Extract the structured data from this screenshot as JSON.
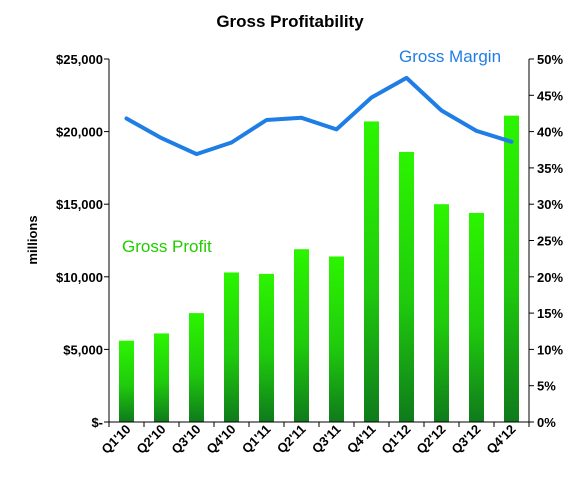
{
  "chart_data": {
    "type": "bar",
    "title": "Gross Profitability",
    "ylabel": "millions",
    "categories": [
      "Q1'10",
      "Q2'10",
      "Q3'10",
      "Q4'10",
      "Q1'11",
      "Q2'11",
      "Q3'11",
      "Q4'11",
      "Q1'12",
      "Q2'12",
      "Q3'12",
      "Q4'12"
    ],
    "series": [
      {
        "name": "Gross Profit",
        "type": "bar",
        "axis": "left",
        "color": "#22cc00",
        "values": [
          5600,
          6100,
          7500,
          10300,
          10200,
          11900,
          11400,
          20700,
          18600,
          15000,
          14400,
          21100
        ]
      },
      {
        "name": "Gross Margin",
        "type": "line",
        "axis": "right",
        "color": "#1f7de6",
        "values": [
          41.8,
          39.1,
          36.9,
          38.5,
          41.6,
          41.9,
          40.3,
          44.7,
          47.4,
          42.9,
          40.1,
          38.6
        ]
      }
    ],
    "y_left": {
      "min": 0,
      "max": 25000,
      "ticks": [
        0,
        5000,
        10000,
        15000,
        20000,
        25000
      ],
      "tick_labels": [
        "$-",
        "$5,000",
        "$10,000",
        "$15,000",
        "$20,000",
        "$25,000"
      ]
    },
    "y_right": {
      "min": 0,
      "max": 50,
      "ticks": [
        0,
        5,
        10,
        15,
        20,
        25,
        30,
        35,
        40,
        45,
        50
      ],
      "tick_labels": [
        "0%",
        "5%",
        "10%",
        "15%",
        "20%",
        "25%",
        "30%",
        "35%",
        "40%",
        "45%",
        "50%"
      ]
    },
    "grid": false
  }
}
